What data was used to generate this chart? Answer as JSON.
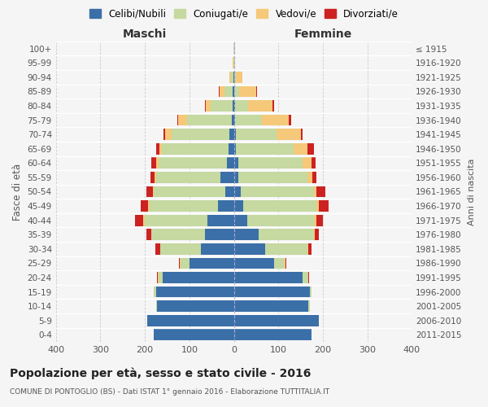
{
  "age_groups": [
    "0-4",
    "5-9",
    "10-14",
    "15-19",
    "20-24",
    "25-29",
    "30-34",
    "35-39",
    "40-44",
    "45-49",
    "50-54",
    "55-59",
    "60-64",
    "65-69",
    "70-74",
    "75-79",
    "80-84",
    "85-89",
    "90-94",
    "95-99",
    "100+"
  ],
  "birth_years": [
    "2011-2015",
    "2006-2010",
    "2001-2005",
    "1996-2000",
    "1991-1995",
    "1986-1990",
    "1981-1985",
    "1976-1980",
    "1971-1975",
    "1966-1970",
    "1961-1965",
    "1956-1960",
    "1951-1955",
    "1946-1950",
    "1941-1945",
    "1936-1940",
    "1931-1935",
    "1926-1930",
    "1921-1925",
    "1916-1920",
    "≤ 1915"
  ],
  "maschi": {
    "celibi": [
      180,
      195,
      172,
      175,
      160,
      100,
      75,
      65,
      60,
      35,
      20,
      30,
      15,
      12,
      10,
      5,
      3,
      2,
      1,
      0,
      0
    ],
    "coniugati": [
      0,
      0,
      2,
      5,
      10,
      20,
      90,
      120,
      140,
      155,
      160,
      145,
      155,
      150,
      130,
      100,
      50,
      20,
      5,
      1,
      1
    ],
    "vedovi": [
      0,
      0,
      0,
      0,
      1,
      1,
      1,
      1,
      3,
      2,
      2,
      3,
      5,
      5,
      15,
      20,
      10,
      10,
      5,
      1,
      0
    ],
    "divorziati": [
      0,
      0,
      0,
      0,
      1,
      2,
      10,
      10,
      20,
      18,
      15,
      10,
      10,
      8,
      3,
      3,
      2,
      1,
      0,
      0,
      0
    ]
  },
  "femmine": {
    "nubili": [
      175,
      190,
      168,
      170,
      155,
      90,
      70,
      55,
      30,
      20,
      15,
      10,
      10,
      5,
      5,
      3,
      2,
      1,
      1,
      0,
      0
    ],
    "coniugate": [
      0,
      0,
      2,
      5,
      12,
      25,
      95,
      125,
      150,
      165,
      165,
      155,
      145,
      130,
      90,
      60,
      30,
      10,
      3,
      1,
      1
    ],
    "vedove": [
      0,
      0,
      0,
      0,
      1,
      1,
      2,
      2,
      5,
      5,
      5,
      12,
      20,
      30,
      55,
      60,
      55,
      40,
      15,
      2,
      0
    ],
    "divorziate": [
      0,
      0,
      0,
      0,
      1,
      2,
      8,
      8,
      15,
      22,
      20,
      8,
      8,
      15,
      5,
      5,
      3,
      1,
      0,
      0,
      0
    ]
  },
  "colors": {
    "celibi": "#3b6fa8",
    "coniugati": "#c5d9a0",
    "vedovi": "#f5c87a",
    "divorziati": "#cc2222"
  },
  "xlim": 400,
  "title": "Popolazione per età, sesso e stato civile - 2016",
  "subtitle": "COMUNE DI PONTOGLIO (BS) - Dati ISTAT 1° gennaio 2016 - Elaborazione TUTTITALIA.IT",
  "ylabel": "Fasce di età",
  "right_ylabel": "Anni di nascita",
  "legend_labels": [
    "Celibi/Nubili",
    "Coniugati/e",
    "Vedovi/e",
    "Divorziati/e"
  ],
  "background_color": "#f5f5f5"
}
